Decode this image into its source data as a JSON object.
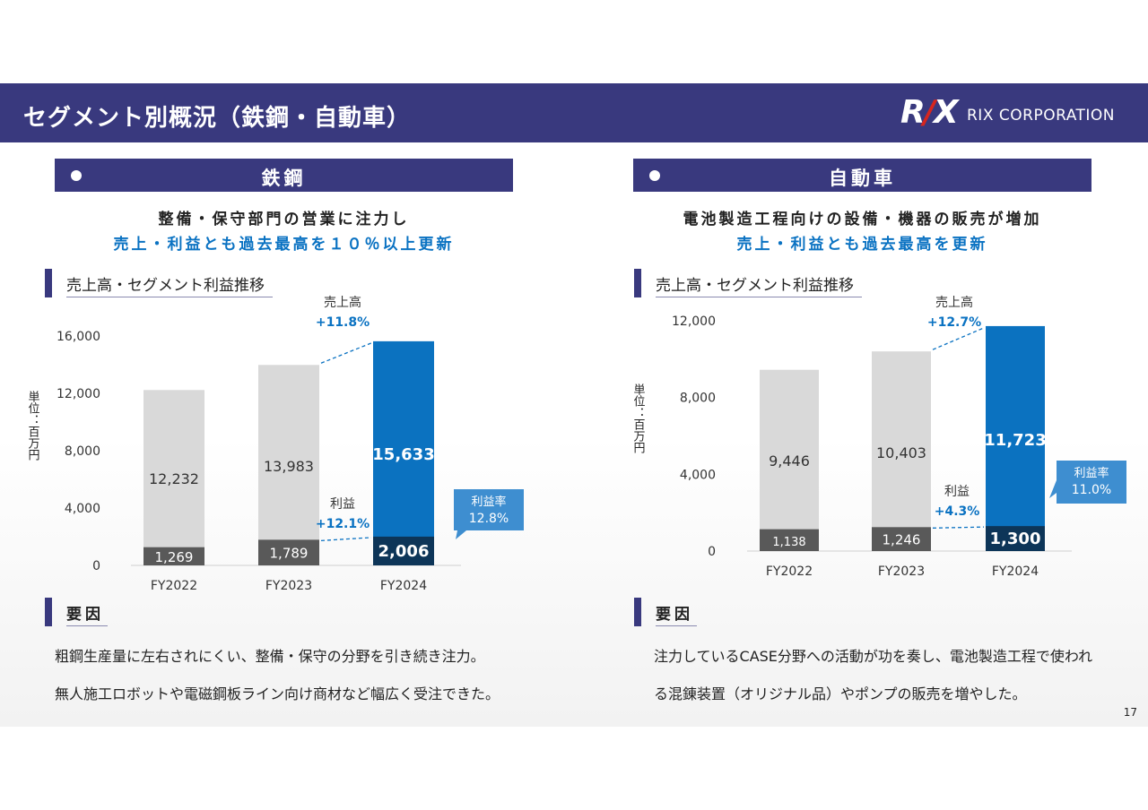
{
  "header": {
    "title": "セグメント別概況（鉄鋼・自動車）",
    "logo_mark": "RIX",
    "logo_text": "RIX CORPORATION"
  },
  "steel": {
    "title": "鉄鋼",
    "headline1": "整備・保守部門の営業に注力し",
    "headline2": "売上・利益とも過去最高を１０％以上更新",
    "section_label": "売上高・セグメント利益推移",
    "reason_label": "要因",
    "reason_lines": [
      "粗鋼生産量に左右されにくい、整備・保守の分野を引き続き注力。",
      "無人施工ロボットや電磁鋼板ライン向け商材など幅広く受注できた。"
    ]
  },
  "auto": {
    "title": "自動車",
    "headline1": "電池製造工程向けの設備・機器の販売が増加",
    "headline2": "売上・利益とも過去最高を更新",
    "section_label": "売上高・セグメント利益推移",
    "reason_label": "要因",
    "reason_lines": [
      "注力しているCASE分野への活動が功を奏し、電池製造工程で使われ",
      "る混錬装置（オリジナル品）やポンプの販売を増やした。"
    ]
  },
  "page_number": "17",
  "chart_data": [
    {
      "type": "bar",
      "categories": [
        "FY2022",
        "FY2023",
        "FY2024"
      ],
      "series": [
        {
          "name": "売上高",
          "values": [
            12232,
            13983,
            15633
          ],
          "labels": [
            "12,232",
            "13,983",
            "15,633"
          ]
        },
        {
          "name": "利益",
          "values": [
            1269,
            1789,
            2006
          ],
          "labels": [
            "1,269",
            "1,789",
            "2,006"
          ]
        }
      ],
      "ylim": [
        0,
        16000
      ],
      "yticks": [
        "0",
        "4,000",
        "8,000",
        "12,000",
        "16,000"
      ],
      "ylabel": "単位：百万円",
      "annotations": {
        "sales_label": "売上高",
        "sales_growth": "+11.8%",
        "profit_label": "利益",
        "profit_growth": "+12.1%",
        "margin_label": "利益率",
        "margin_value": "12.8%"
      },
      "colors": {
        "past_sales": "#d9d9d9",
        "past_profit": "#595959",
        "current_sales": "#0b72c0",
        "current_profit": "#0d3558",
        "accent": "#0a72c2",
        "callout": "#3e8ed0"
      }
    },
    {
      "type": "bar",
      "categories": [
        "FY2022",
        "FY2023",
        "FY2024"
      ],
      "series": [
        {
          "name": "売上高",
          "values": [
            9446,
            10403,
            11723
          ],
          "labels": [
            "9,446",
            "10,403",
            "11,723"
          ]
        },
        {
          "name": "利益",
          "values": [
            1138,
            1246,
            1300
          ],
          "labels": [
            "1,138",
            "1,246",
            "1,300"
          ]
        }
      ],
      "ylim": [
        0,
        12000
      ],
      "yticks": [
        "0",
        "4,000",
        "8,000",
        "12,000"
      ],
      "ylabel": "単位：百万円",
      "annotations": {
        "sales_label": "売上高",
        "sales_growth": "+12.7%",
        "profit_label": "利益",
        "profit_growth": "+4.3%",
        "margin_label": "利益率",
        "margin_value": "11.0%"
      },
      "colors": {
        "past_sales": "#d9d9d9",
        "past_profit": "#595959",
        "current_sales": "#0b72c0",
        "current_profit": "#0d3558",
        "accent": "#0a72c2",
        "callout": "#3e8ed0"
      }
    }
  ]
}
